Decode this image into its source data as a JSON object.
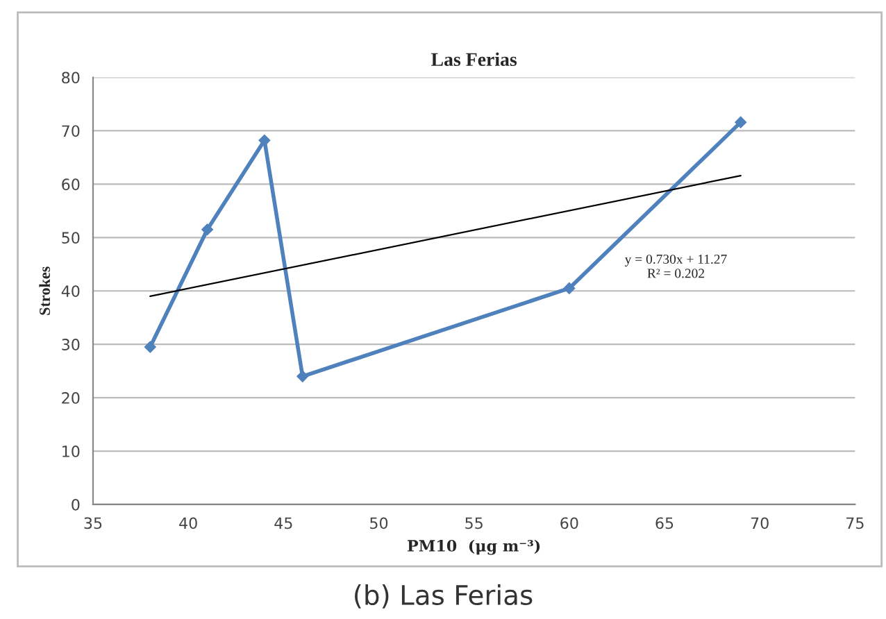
{
  "chart_data": {
    "type": "line",
    "title": "Las Ferias",
    "xlabel": "PM10  (μg m⁻³)",
    "ylabel": "Strokes",
    "annotations": [
      "y = 0.730x + 11.27\nR² = 0.202",
      "(b) Las Ferias"
    ],
    "series": [
      {
        "color": "#4f81bd",
        "x": [
          38,
          41,
          44,
          46,
          60,
          69
        ],
        "values": [
          29.5,
          51.5,
          68.2,
          24,
          40.5,
          71.6
        ],
        "marker": "diamond"
      },
      {
        "type": "line",
        "color": "#000000",
        "x": [
          38,
          69
        ],
        "values": [
          39.0,
          61.6
        ],
        "marker": "none"
      }
    ],
    "xlim": [
      35,
      75
    ],
    "xticks": [
      35,
      40,
      45,
      50,
      55,
      60,
      65,
      70,
      75
    ],
    "ylim": [
      0,
      80
    ],
    "yticks": [
      0,
      10,
      20,
      30,
      40,
      50,
      60,
      70,
      80
    ],
    "grid": "y",
    "legend": false
  }
}
